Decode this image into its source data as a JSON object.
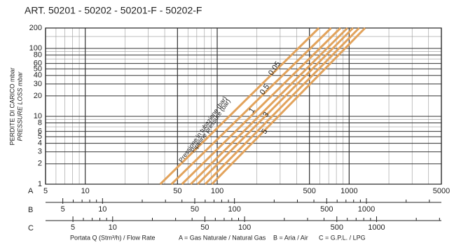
{
  "chart_data": {
    "type": "line",
    "title": "ART. 50201 - 50202 - 50201-F - 50202-F",
    "ylabel": [
      "PERDITE DI CARICO mbar",
      "PRESSURE LOSS mbar"
    ],
    "xscale": "log",
    "yscale": "log",
    "grid": true,
    "axis_name": "A",
    "xlim": [
      5,
      5000
    ],
    "xticks": [
      5,
      10,
      50,
      100,
      500,
      1000,
      5000
    ],
    "x_minor_ticks": [
      6,
      7,
      8,
      9,
      20,
      30,
      40,
      60,
      70,
      80,
      90,
      200,
      300,
      400,
      600,
      700,
      800,
      900,
      2000,
      3000,
      4000
    ],
    "ylim": [
      1,
      200
    ],
    "yticks": [
      1,
      2,
      3,
      4,
      5,
      6,
      8,
      10,
      20,
      30,
      40,
      50,
      60,
      80,
      100,
      200
    ],
    "y_minor_ticks": [
      7,
      9,
      70,
      90,
      150
    ],
    "series": [
      {
        "color": "#e2a35c",
        "x": [
          37,
          590
        ],
        "values": [
          1,
          200
        ]
      },
      {
        "color": "#e2a35c",
        "x": [
          45,
          730
        ],
        "values": [
          1,
          200
        ]
      },
      {
        "color": "#e2a35c",
        "x": [
          54,
          860
        ],
        "values": [
          1,
          200
        ]
      },
      {
        "color": "#e2a35c",
        "x": [
          63,
          970
        ],
        "values": [
          1,
          200
        ]
      },
      {
        "color": "#e2a35c",
        "x": [
          71,
          1070
        ],
        "values": [
          1,
          200
        ]
      },
      {
        "color": "#e2a35c",
        "x": [
          81,
          1190
        ],
        "values": [
          1,
          200
        ]
      },
      {
        "color": "#e2a35c",
        "x": [
          91,
          1320
        ],
        "values": [
          1,
          200
        ]
      }
    ],
    "annotations": [
      "Pressione in tubazione (bar)",
      "Pipeline pressure (bar)"
    ],
    "line_labels": [
      "0.05",
      "0.5",
      "1",
      "3",
      "5"
    ],
    "extra_axes": [
      {
        "name": "B",
        "xlim": [
          3.7,
          3700
        ],
        "xticks": [
          5,
          10,
          50,
          100,
          500,
          1000
        ],
        "x_minor_ticks": [
          6,
          7,
          8,
          9,
          20,
          30,
          40,
          60,
          70,
          80,
          90,
          200,
          300,
          400,
          600,
          700,
          800,
          900,
          2000,
          3000
        ]
      },
      {
        "name": "C",
        "xlim": [
          3.1,
          3100
        ],
        "xticks": [
          5,
          10,
          50,
          100,
          500,
          1000
        ],
        "x_minor_ticks": [
          6,
          7,
          8,
          9,
          20,
          30,
          40,
          60,
          70,
          80,
          90,
          200,
          300,
          400,
          600,
          700,
          800,
          900,
          2000,
          3000
        ]
      }
    ],
    "footer": [
      "Portata Q (Stm³/h) / Flow Rate",
      "A = Gas Naturale / Natural Gas",
      "B = Aria / Air",
      "C = G.P.L. / LPG"
    ]
  }
}
